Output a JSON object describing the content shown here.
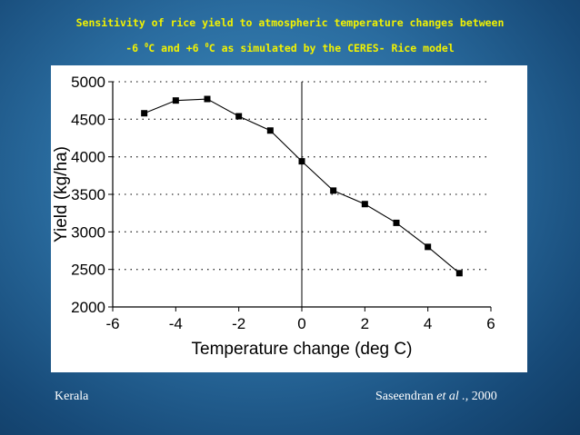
{
  "slide": {
    "title_line1": "Sensitivity of rice yield to atmospheric temperature changes between",
    "title_line2_pre": "-6 ",
    "title_line2_sup1": "0",
    "title_line2_mid": "C and +6 ",
    "title_line2_sup2": "0",
    "title_line2_post": "C as simulated by the CERES- Rice model",
    "footer_left": "Kerala",
    "footer_right_author": "Saseendran",
    "footer_right_etal": "et al .,",
    "footer_right_year": " 2000",
    "colors": {
      "title": "#f2f200",
      "background": "#2a6c9f"
    }
  },
  "chart_data": {
    "type": "line",
    "xlabel": "Temperature change (deg C)",
    "ylabel": "Yield (kg/ha)",
    "xlim": [
      -6,
      6
    ],
    "ylim": [
      2000,
      5000
    ],
    "xticks": [
      -6,
      -4,
      -2,
      0,
      2,
      4,
      6
    ],
    "yticks": [
      2000,
      2500,
      3000,
      3500,
      4000,
      4500,
      5000
    ],
    "grid": "horizontal dotted",
    "vertical_reference_line_x": 0,
    "marker": "square",
    "series": [
      {
        "x": [
          -5,
          -4,
          -3,
          -2,
          -1,
          0,
          1,
          2,
          3,
          4,
          5
        ],
        "values": [
          4580,
          4750,
          4770,
          4540,
          4350,
          3940,
          3550,
          3370,
          3120,
          2800,
          2450
        ]
      }
    ]
  }
}
